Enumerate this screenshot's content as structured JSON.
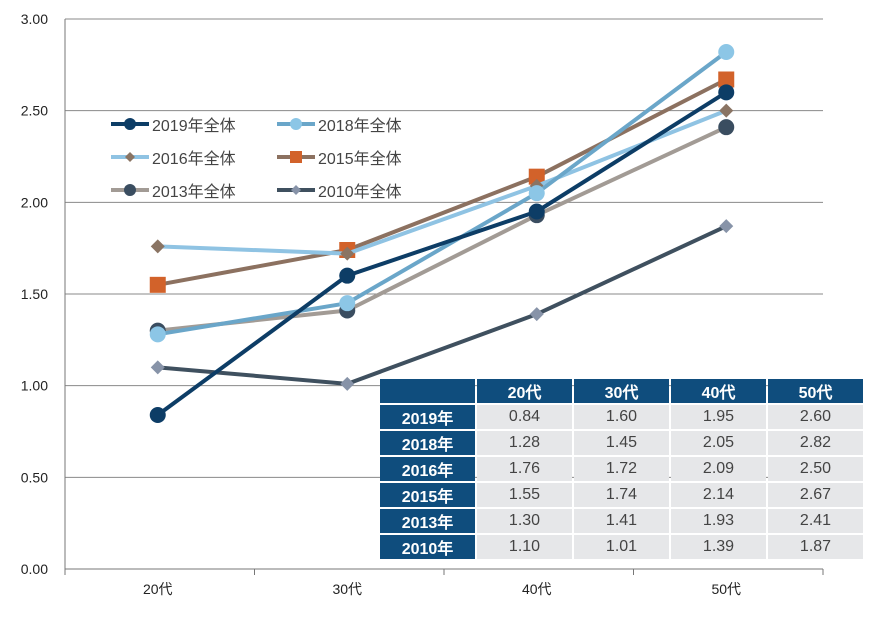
{
  "chart_data": {
    "type": "line",
    "categories": [
      "20代",
      "30代",
      "40代",
      "50代"
    ],
    "ylim": [
      0,
      3
    ],
    "yticks": [
      "0.00",
      "0.50",
      "1.00",
      "1.50",
      "2.00",
      "2.50",
      "3.00"
    ],
    "grid": true,
    "legend_position": "top-left",
    "series": [
      {
        "name": "2019年全体",
        "row_label": "2019年",
        "values": [
          0.84,
          1.6,
          1.95,
          2.6
        ],
        "values_text": [
          "0.84",
          "1.60",
          "1.95",
          "2.60"
        ],
        "line_color": "#0d3d66",
        "marker_color": "#0d3d66",
        "marker": "circle"
      },
      {
        "name": "2018年全体",
        "row_label": "2018年",
        "values": [
          1.28,
          1.45,
          2.05,
          2.82
        ],
        "values_text": [
          "1.28",
          "1.45",
          "2.05",
          "2.82"
        ],
        "line_color": "#6aa6c9",
        "marker_color": "#8cc6e6",
        "marker": "circle"
      },
      {
        "name": "2016年全体",
        "row_label": "2016年",
        "values": [
          1.76,
          1.72,
          2.09,
          2.5
        ],
        "values_text": [
          "1.76",
          "1.72",
          "2.09",
          "2.50"
        ],
        "line_color": "#8fc3e3",
        "marker_color": "#8a7463",
        "marker": "diamond"
      },
      {
        "name": "2015年全体",
        "row_label": "2015年",
        "values": [
          1.55,
          1.74,
          2.14,
          2.67
        ],
        "values_text": [
          "1.55",
          "1.74",
          "2.14",
          "2.67"
        ],
        "line_color": "#8c7160",
        "marker_color": "#d2622a",
        "marker": "square"
      },
      {
        "name": "2013年全体",
        "row_label": "2013年",
        "values": [
          1.3,
          1.41,
          1.93,
          2.41
        ],
        "values_text": [
          "1.30",
          "1.41",
          "1.93",
          "2.41"
        ],
        "line_color": "#a29b95",
        "marker_color": "#3a4d60",
        "marker": "circle"
      },
      {
        "name": "2010年全体",
        "row_label": "2010年",
        "values": [
          1.1,
          1.01,
          1.39,
          1.87
        ],
        "values_text": [
          "1.10",
          "1.01",
          "1.39",
          "1.87"
        ],
        "line_color": "#3f505f",
        "marker_color": "#8793a8",
        "marker": "diamond"
      }
    ]
  }
}
